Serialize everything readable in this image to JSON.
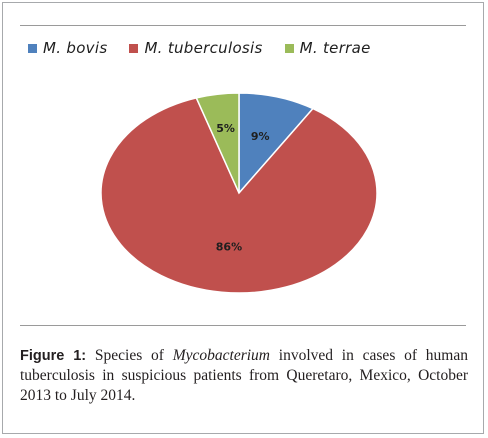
{
  "chart_data": {
    "type": "pie",
    "title": "",
    "legend_position": "top",
    "slices": [
      {
        "name": "M. bovis",
        "value": 9,
        "label": "9%",
        "color": "#4f81bd"
      },
      {
        "name": "M. tuberculosis",
        "value": 86,
        "label": "86%",
        "color": "#c0504d"
      },
      {
        "name": "M. terrae",
        "value": 5,
        "label": "5%",
        "color": "#9bbb59"
      }
    ]
  },
  "caption": {
    "label": "Figure 1:",
    "text_before": " Species of ",
    "genus": "Mycobacterium",
    "text_after": " involved in cases of human tuberculosis in suspicious patients from Queretaro, Mexico, October 2013 to July 2014."
  }
}
